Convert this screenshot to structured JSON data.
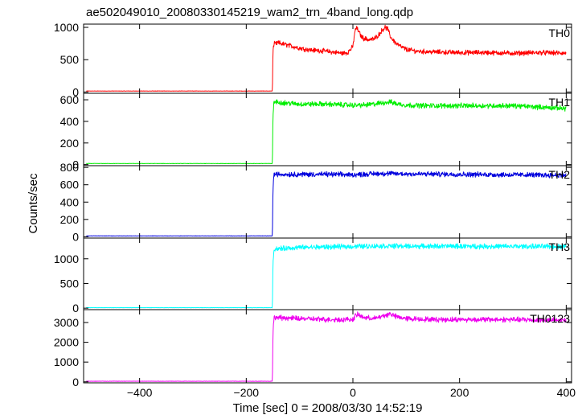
{
  "chart_data": {
    "type": "line",
    "title": "ae502049010_20080330145219_wam2_trn_4band_long.qdp",
    "xlabel": "Time [sec] 0 = 2008/03/30 14:52:19",
    "ylabel": "Counts/sec",
    "xlim": [
      -505,
      410
    ],
    "x_ticks": [
      -400,
      -200,
      0,
      200,
      400
    ],
    "x_tick_labels": [
      "−400",
      "−200",
      "0",
      "200",
      "400"
    ],
    "onset_time": -150,
    "grid": false,
    "panels": [
      {
        "name": "TH0",
        "color": "#ff0000",
        "ylim": [
          -20,
          1050
        ],
        "y_ticks": [
          0,
          500,
          1000
        ],
        "x": [
          -500,
          -151,
          -150,
          -148,
          -140,
          -120,
          -100,
          -80,
          -60,
          -40,
          -20,
          -10,
          0,
          3,
          6,
          10,
          15,
          20,
          30,
          40,
          50,
          55,
          60,
          65,
          70,
          80,
          90,
          100,
          120,
          150,
          200,
          250,
          300,
          350,
          400
        ],
        "y": [
          15,
          15,
          620,
          740,
          760,
          720,
          680,
          650,
          640,
          620,
          600,
          610,
          700,
          900,
          1000,
          950,
          870,
          830,
          810,
          820,
          900,
          960,
          1000,
          980,
          860,
          760,
          700,
          660,
          630,
          620,
          610,
          610,
          600,
          610,
          600
        ]
      },
      {
        "name": "TH1",
        "color": "#00ee00",
        "ylim": [
          -10,
          660
        ],
        "y_ticks": [
          0,
          200,
          400,
          600
        ],
        "x": [
          -500,
          -151,
          -150,
          -148,
          -100,
          -50,
          0,
          20,
          40,
          60,
          70,
          80,
          100,
          150,
          200,
          300,
          400
        ],
        "y": [
          10,
          10,
          450,
          580,
          560,
          560,
          550,
          550,
          560,
          575,
          580,
          565,
          550,
          545,
          545,
          545,
          520
        ]
      },
      {
        "name": "TH2",
        "color": "#0000dd",
        "ylim": [
          -15,
          820
        ],
        "y_ticks": [
          0,
          200,
          400,
          600,
          800
        ],
        "x": [
          -500,
          -151,
          -150,
          -148,
          -100,
          -50,
          0,
          50,
          100,
          200,
          300,
          400
        ],
        "y": [
          10,
          10,
          550,
          720,
          720,
          720,
          715,
          730,
          725,
          720,
          715,
          710
        ]
      },
      {
        "name": "TH3",
        "color": "#00ffff",
        "ylim": [
          -30,
          1420
        ],
        "y_ticks": [
          0,
          500,
          1000
        ],
        "x": [
          -500,
          -151,
          -150,
          -148,
          -100,
          -50,
          0,
          50,
          100,
          200,
          300,
          400
        ],
        "y": [
          10,
          10,
          900,
          1200,
          1230,
          1240,
          1250,
          1260,
          1255,
          1255,
          1250,
          1250
        ]
      },
      {
        "name": "TH0123",
        "color": "#ee00ee",
        "ylim": [
          -50,
          3650
        ],
        "y_ticks": [
          0,
          1000,
          2000,
          3000
        ],
        "x": [
          -500,
          -151,
          -150,
          -148,
          -100,
          -50,
          0,
          5,
          10,
          20,
          40,
          60,
          70,
          80,
          100,
          150,
          200,
          300,
          400
        ],
        "y": [
          30,
          30,
          2400,
          3250,
          3200,
          3150,
          3150,
          3350,
          3400,
          3250,
          3200,
          3350,
          3450,
          3300,
          3200,
          3150,
          3150,
          3150,
          3100
        ]
      }
    ]
  }
}
